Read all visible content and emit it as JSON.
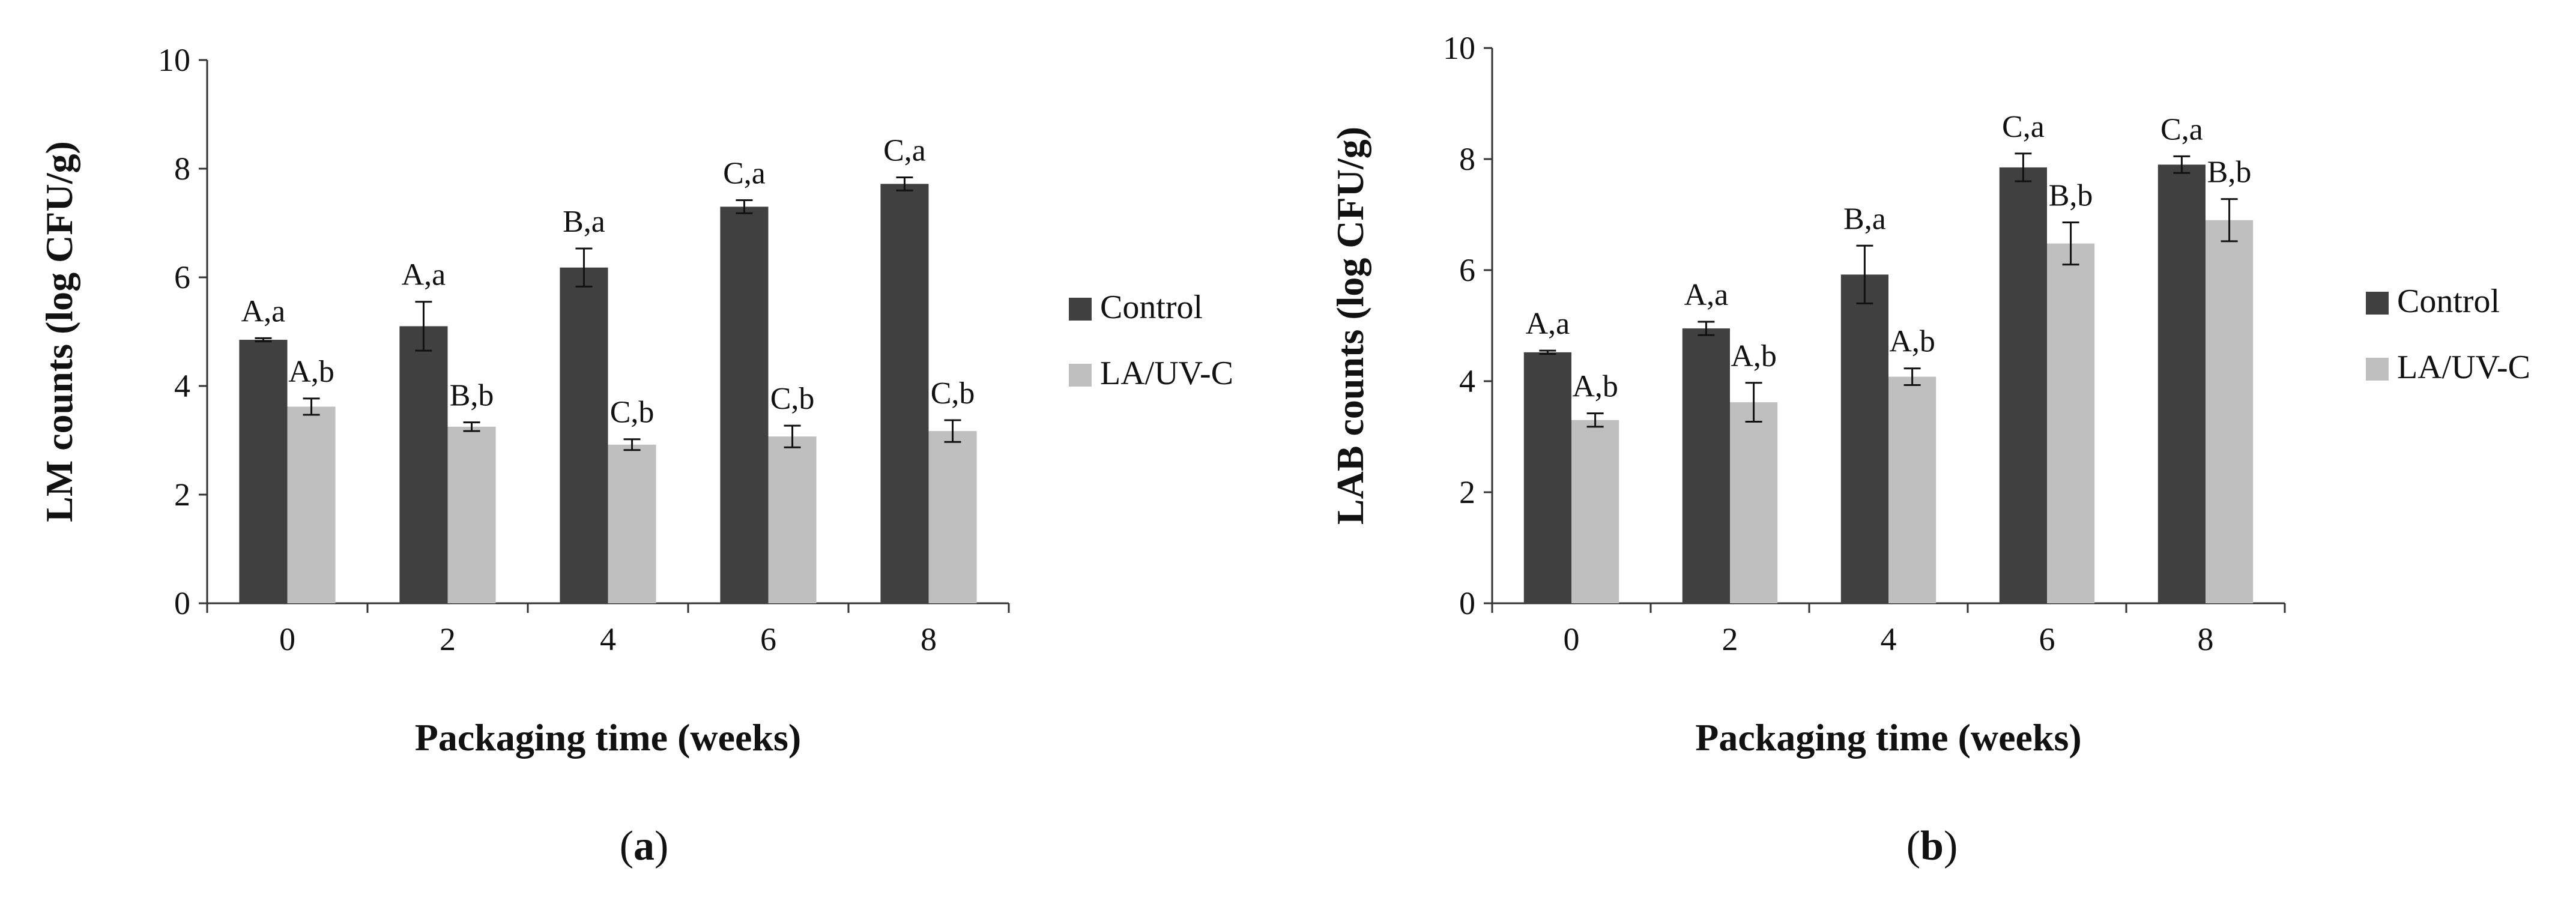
{
  "chart_data": [
    {
      "type": "bar",
      "panel_label": "a",
      "categories": [
        "0",
        "2",
        "4",
        "6",
        "8"
      ],
      "xlabel": "Packaging time (weeks)",
      "ylabel": "LM counts (log CFU/g)",
      "ylim": [
        0,
        10
      ],
      "yticks": [
        0,
        2,
        4,
        6,
        8,
        10
      ],
      "legend_position": "right",
      "series": [
        {
          "name": "Control",
          "color": "#404040",
          "values": [
            4.85,
            5.1,
            6.18,
            7.3,
            7.72
          ],
          "errors": [
            0.03,
            0.45,
            0.35,
            0.12,
            0.12
          ],
          "labels": [
            "A,a",
            "A,a",
            "B,a",
            "C,a",
            "C,a"
          ]
        },
        {
          "name": "LA/UV-C",
          "color": "#bfbfbf",
          "values": [
            3.62,
            3.25,
            2.92,
            3.07,
            3.17
          ],
          "errors": [
            0.15,
            0.08,
            0.1,
            0.2,
            0.2
          ],
          "labels": [
            "A,b",
            "B,b",
            "C,b",
            "C,b",
            "C,b"
          ]
        }
      ]
    },
    {
      "type": "bar",
      "panel_label": "b",
      "categories": [
        "0",
        "2",
        "4",
        "6",
        "8"
      ],
      "xlabel": "Packaging time (weeks)",
      "ylabel": "LAB counts (log CFU/g)",
      "ylim": [
        0,
        10
      ],
      "yticks": [
        0,
        2,
        4,
        6,
        8,
        10
      ],
      "legend_position": "right",
      "series": [
        {
          "name": "Control",
          "color": "#404040",
          "values": [
            4.52,
            4.95,
            5.92,
            7.85,
            7.9
          ],
          "errors": [
            0.03,
            0.12,
            0.52,
            0.25,
            0.15
          ],
          "labels": [
            "A,a",
            "A,a",
            "B,a",
            "C,a",
            "C,a"
          ]
        },
        {
          "name": "LA/UV-C",
          "color": "#bfbfbf",
          "values": [
            3.3,
            3.62,
            4.08,
            6.48,
            6.9
          ],
          "errors": [
            0.12,
            0.35,
            0.15,
            0.38,
            0.38
          ],
          "labels": [
            "A,b",
            "A,b",
            "A,b",
            "B,b",
            "B,b"
          ]
        }
      ]
    }
  ]
}
